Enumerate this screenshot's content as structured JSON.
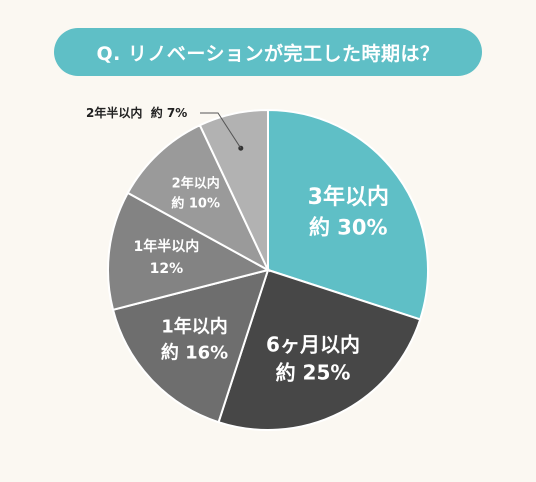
{
  "title": "Q. リノベーションが完工した時期は？",
  "colors": {
    "background": "#fbf8f2",
    "title_pill": "#5fbfc6",
    "slice_3y": "#5fbfc6",
    "slice_6m": "#474747",
    "slice_1y": "#6e6e6e",
    "slice_1_5y": "#838383",
    "slice_2y": "#9a9a9a",
    "slice_2_5y": "#b2b2b2"
  },
  "chart_data": {
    "type": "pie",
    "title": "Q. リノベーションが完工した時期は？",
    "slices": [
      {
        "label": "3年以内",
        "value_text": "約 30%",
        "value": 30
      },
      {
        "label": "6ヶ月以内",
        "value_text": "約 25%",
        "value": 25
      },
      {
        "label": "1年以内",
        "value_text": "約 16%",
        "value": 16
      },
      {
        "label": "1年半以内",
        "value_text": "12%",
        "value": 12
      },
      {
        "label": "2年以内",
        "value_text": "約 10%",
        "value": 10
      },
      {
        "label": "2年半以内",
        "value_text": "約 7%",
        "value": 7
      }
    ]
  }
}
